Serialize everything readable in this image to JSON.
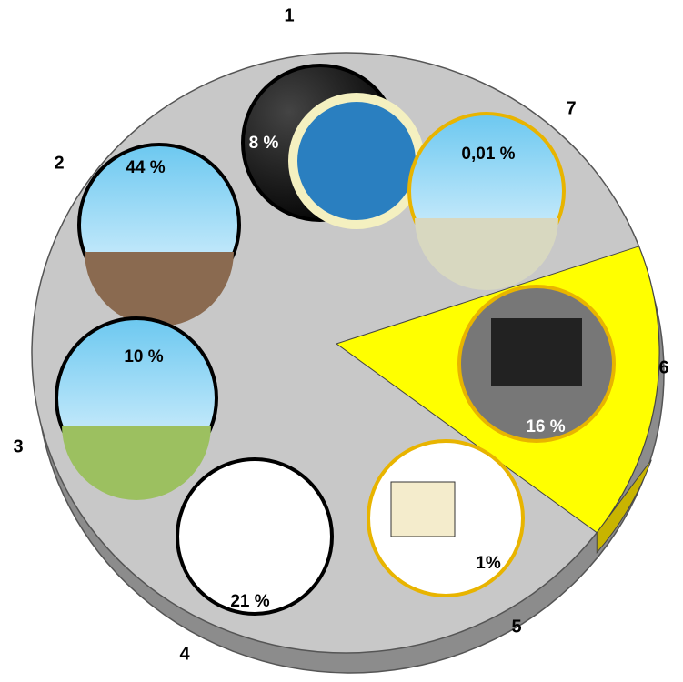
{
  "chart_data": {
    "type": "pie",
    "categories": [
      "1",
      "2",
      "3",
      "4",
      "5",
      "6",
      "7"
    ],
    "values": [
      8,
      44,
      10,
      21,
      1,
      16,
      0.01
    ],
    "value_labels": [
      "8 %",
      "44 %",
      "10 %",
      "21 %",
      "1%",
      "16 %",
      "0,01 %"
    ],
    "highlight": 5,
    "highlight_color": "#ffff00",
    "color": "#c8c8c8"
  }
}
